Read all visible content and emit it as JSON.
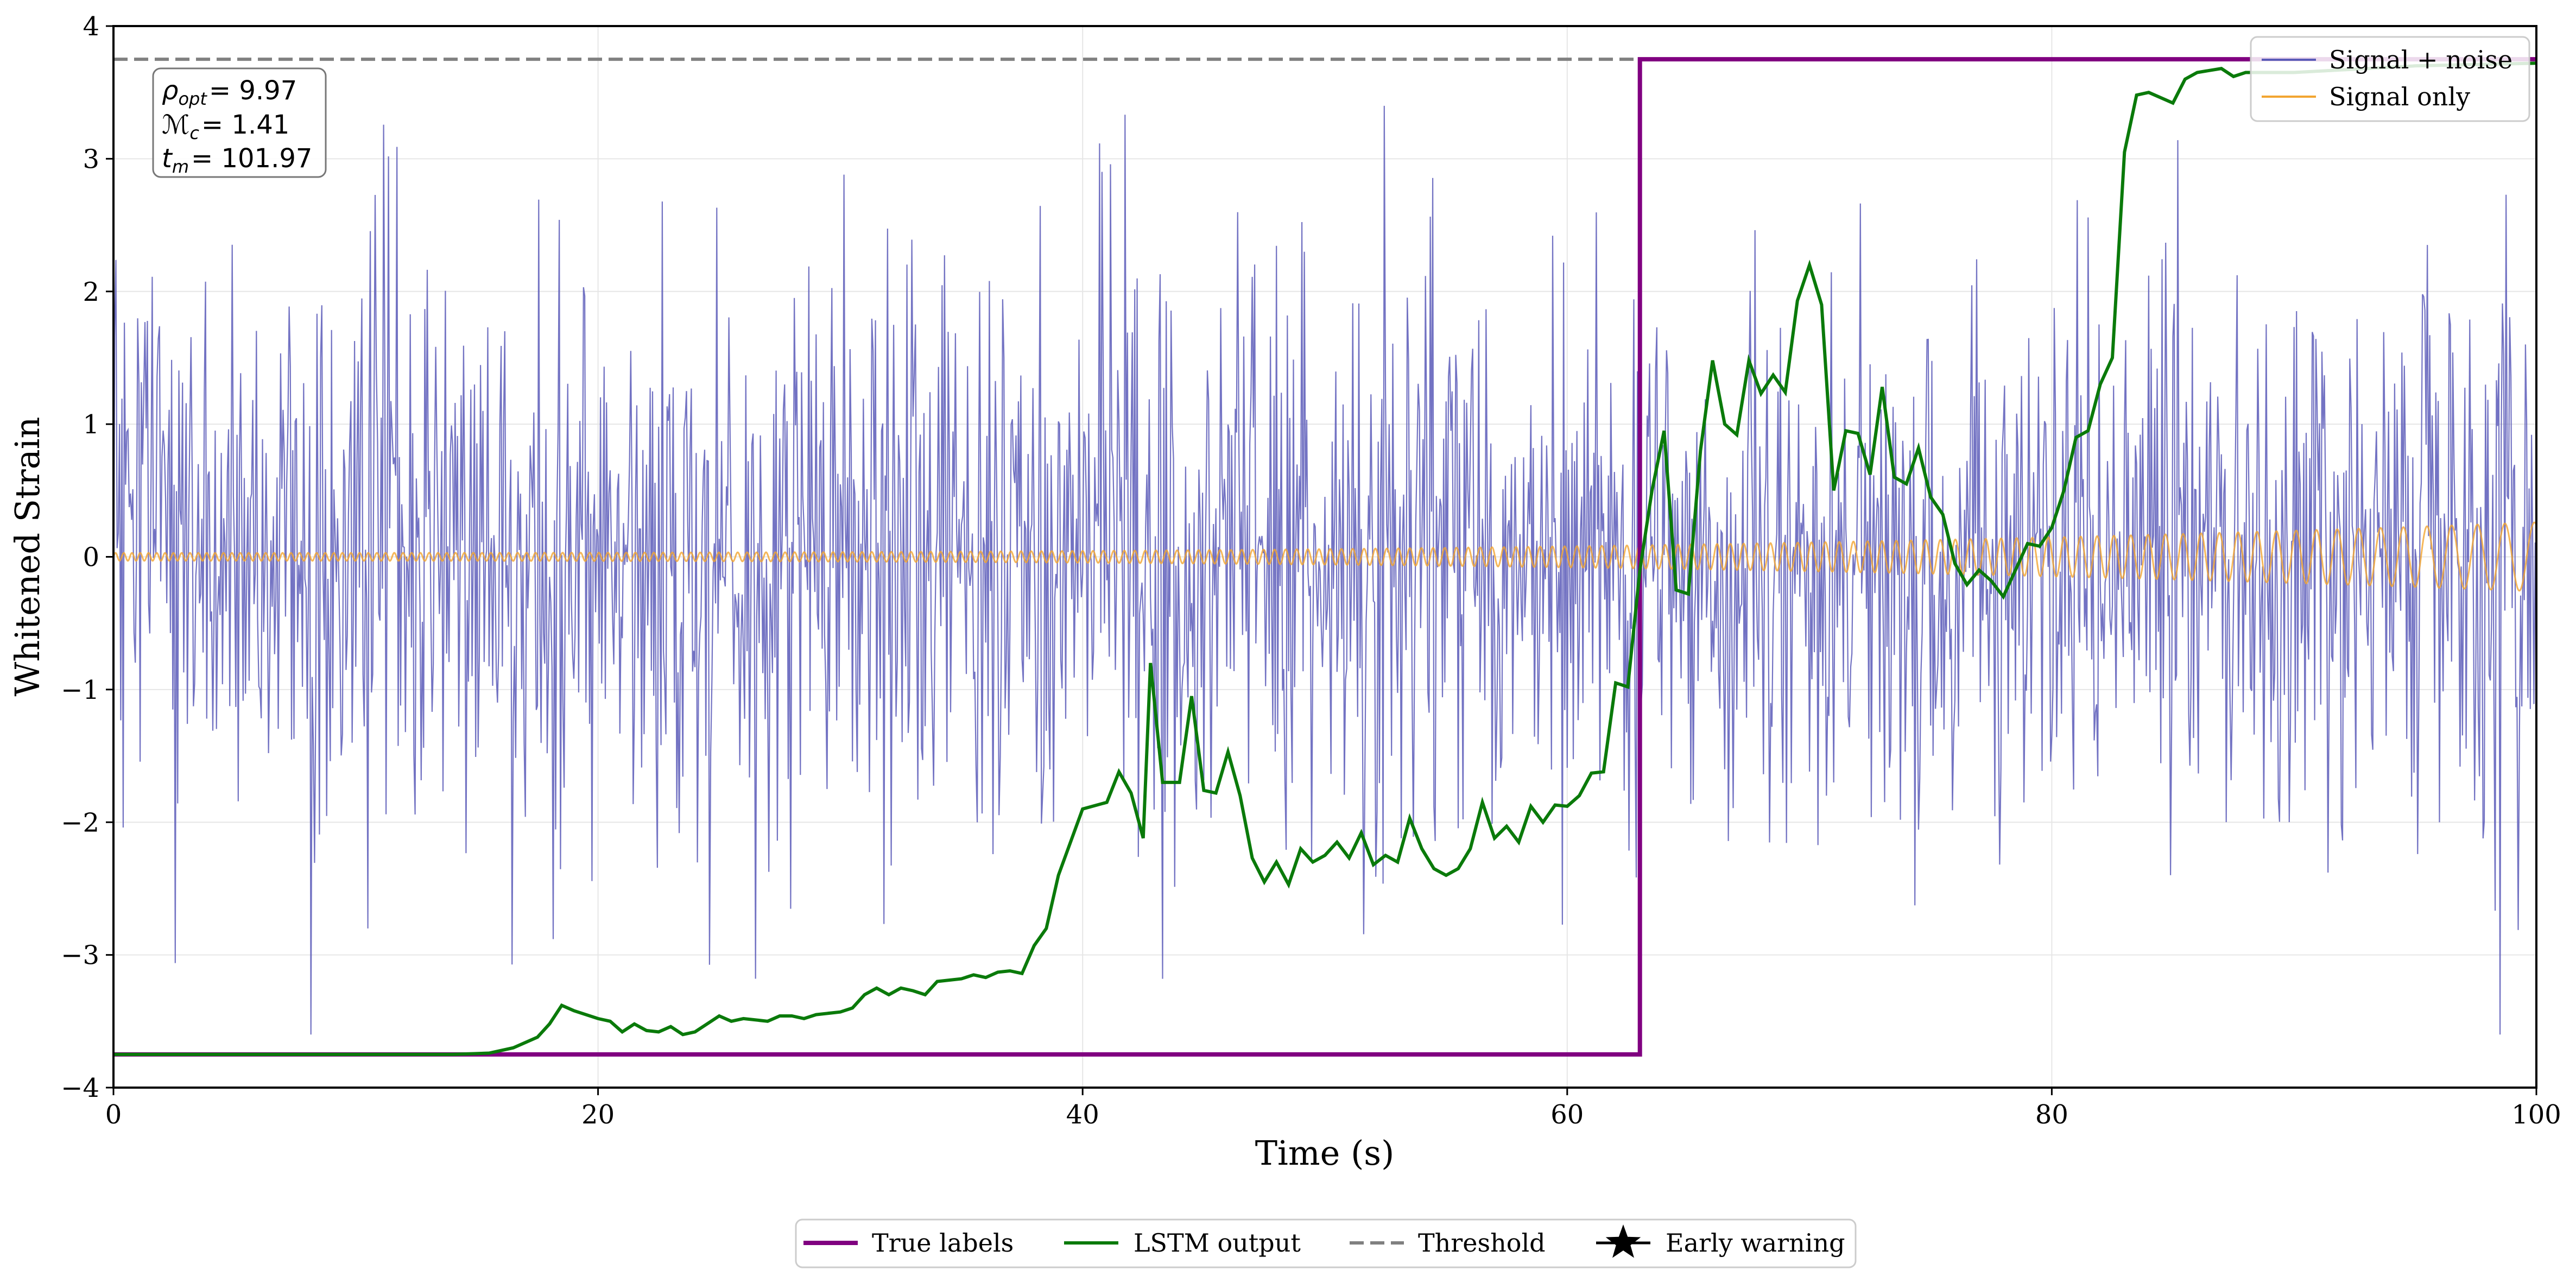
{
  "chart_data": {
    "type": "line",
    "title": "",
    "xlabel": "Time (s)",
    "ylabel": "Whitened Strain",
    "xlim": [
      0,
      100
    ],
    "ylim": [
      -4,
      4
    ],
    "xticks": [
      0,
      20,
      40,
      60,
      80,
      100
    ],
    "yticks": [
      -4,
      -3,
      -2,
      -1,
      0,
      1,
      2,
      3,
      4
    ],
    "grid": true,
    "annotation": {
      "rho_symbol": "ρ",
      "rho_sub": "opt",
      "rho_value": "= 9.97",
      "mc_symbol": "ℳ",
      "mc_sub": "c",
      "mc_value": "= 1.41",
      "tm_symbol": "t",
      "tm_sub": "m",
      "tm_value": "= 101.97"
    },
    "legend_upper": {
      "position": "top-right",
      "entries": [
        {
          "label": "Signal + noise",
          "color": "#5a5ab8"
        },
        {
          "label": "Signal only",
          "color": "#f2a531"
        }
      ]
    },
    "legend_lower": {
      "position": "bottom-center",
      "entries": [
        {
          "label": "True labels",
          "color": "#800080",
          "style": "solid"
        },
        {
          "label": "LSTM output",
          "color": "#0a7a0a",
          "style": "solid"
        },
        {
          "label": "Threshold",
          "color": "#808080",
          "style": "dashed"
        },
        {
          "label": "Early warning",
          "color": "#000000",
          "style": "star"
        }
      ]
    },
    "series": [
      {
        "name": "Signal + noise",
        "color": "#5a5ab8",
        "description": "white-noise-like strain, std ≈ 1.05",
        "noise_std": 1.05,
        "samples": 2000
      },
      {
        "name": "Signal only",
        "color": "#f2a531",
        "description": "chirp with amplitude rising from 0.03 to 0.26 and frequency falling toward t = 100 s"
      },
      {
        "name": "True labels",
        "color": "#800080",
        "step_time": 63,
        "low": -3.75,
        "high": 3.75
      },
      {
        "name": "Threshold",
        "color": "#808080",
        "y": 3.75
      },
      {
        "name": "LSTM output",
        "color": "#0a7a0a",
        "points": [
          [
            0,
            -3.75
          ],
          [
            14,
            -3.75
          ],
          [
            15.5,
            -3.74
          ],
          [
            16.5,
            -3.7
          ],
          [
            17.5,
            -3.62
          ],
          [
            18,
            -3.52
          ],
          [
            18.5,
            -3.38
          ],
          [
            19,
            -3.42
          ],
          [
            20,
            -3.48
          ],
          [
            20.5,
            -3.5
          ],
          [
            21,
            -3.58
          ],
          [
            21.5,
            -3.52
          ],
          [
            22,
            -3.57
          ],
          [
            22.5,
            -3.58
          ],
          [
            23,
            -3.54
          ],
          [
            23.5,
            -3.6
          ],
          [
            24,
            -3.58
          ],
          [
            24.5,
            -3.52
          ],
          [
            25,
            -3.46
          ],
          [
            25.5,
            -3.5
          ],
          [
            26,
            -3.48
          ],
          [
            27,
            -3.5
          ],
          [
            27.5,
            -3.46
          ],
          [
            28,
            -3.46
          ],
          [
            28.5,
            -3.48
          ],
          [
            29,
            -3.45
          ],
          [
            30,
            -3.43
          ],
          [
            30.5,
            -3.4
          ],
          [
            31,
            -3.3
          ],
          [
            31.5,
            -3.25
          ],
          [
            32,
            -3.3
          ],
          [
            32.5,
            -3.25
          ],
          [
            33,
            -3.27
          ],
          [
            33.5,
            -3.3
          ],
          [
            34,
            -3.2
          ],
          [
            35,
            -3.18
          ],
          [
            35.5,
            -3.15
          ],
          [
            36,
            -3.17
          ],
          [
            36.5,
            -3.13
          ],
          [
            37,
            -3.12
          ],
          [
            37.5,
            -3.14
          ],
          [
            38,
            -2.93
          ],
          [
            38.5,
            -2.8
          ],
          [
            39,
            -2.4
          ],
          [
            40,
            -1.9
          ],
          [
            41,
            -1.85
          ],
          [
            41.5,
            -1.62
          ],
          [
            42,
            -1.78
          ],
          [
            42.5,
            -2.12
          ],
          [
            42.8,
            -0.8
          ],
          [
            43.3,
            -1.7
          ],
          [
            44,
            -1.7
          ],
          [
            44.5,
            -1.05
          ],
          [
            45,
            -1.76
          ],
          [
            45.5,
            -1.78
          ],
          [
            46,
            -1.47
          ],
          [
            46.5,
            -1.8
          ],
          [
            47,
            -2.27
          ],
          [
            47.5,
            -2.45
          ],
          [
            48,
            -2.3
          ],
          [
            48.5,
            -2.47
          ],
          [
            49,
            -2.2
          ],
          [
            49.5,
            -2.3
          ],
          [
            50,
            -2.25
          ],
          [
            50.5,
            -2.15
          ],
          [
            51,
            -2.27
          ],
          [
            51.5,
            -2.08
          ],
          [
            52,
            -2.32
          ],
          [
            52.5,
            -2.25
          ],
          [
            53,
            -2.3
          ],
          [
            53.5,
            -1.97
          ],
          [
            54,
            -2.2
          ],
          [
            54.5,
            -2.35
          ],
          [
            55,
            -2.4
          ],
          [
            55.5,
            -2.35
          ],
          [
            56,
            -2.2
          ],
          [
            56.5,
            -1.85
          ],
          [
            57,
            -2.12
          ],
          [
            57.5,
            -2.03
          ],
          [
            58,
            -2.15
          ],
          [
            58.5,
            -1.88
          ],
          [
            59,
            -2.0
          ],
          [
            59.5,
            -1.87
          ],
          [
            60,
            -1.88
          ],
          [
            60.5,
            -1.8
          ],
          [
            61,
            -1.63
          ],
          [
            61.5,
            -1.62
          ],
          [
            62,
            -0.95
          ],
          [
            62.5,
            -0.98
          ],
          [
            63,
            -0.1
          ],
          [
            63.5,
            0.5
          ],
          [
            64,
            0.95
          ],
          [
            64.5,
            -0.25
          ],
          [
            65,
            -0.28
          ],
          [
            65.5,
            0.8
          ],
          [
            66,
            1.48
          ],
          [
            66.5,
            1.0
          ],
          [
            67,
            0.92
          ],
          [
            67.5,
            1.48
          ],
          [
            68,
            1.23
          ],
          [
            68.5,
            1.37
          ],
          [
            69,
            1.24
          ],
          [
            69.5,
            1.93
          ],
          [
            70,
            2.2
          ],
          [
            70.5,
            1.9
          ],
          [
            71,
            0.5
          ],
          [
            71.5,
            0.95
          ],
          [
            72,
            0.93
          ],
          [
            72.5,
            0.62
          ],
          [
            73,
            1.28
          ],
          [
            73.5,
            0.6
          ],
          [
            74,
            0.55
          ],
          [
            74.5,
            0.82
          ],
          [
            75,
            0.45
          ],
          [
            75.5,
            0.32
          ],
          [
            76,
            -0.05
          ],
          [
            76.5,
            -0.21
          ],
          [
            77,
            -0.1
          ],
          [
            77.5,
            -0.18
          ],
          [
            78,
            -0.3
          ],
          [
            78.5,
            -0.1
          ],
          [
            79,
            0.1
          ],
          [
            79.5,
            0.08
          ],
          [
            80,
            0.22
          ],
          [
            80.5,
            0.5
          ],
          [
            81,
            0.9
          ],
          [
            81.5,
            0.95
          ],
          [
            82,
            1.3
          ],
          [
            82.5,
            1.5
          ],
          [
            83,
            3.05
          ],
          [
            83.5,
            3.48
          ],
          [
            84,
            3.5
          ],
          [
            85,
            3.42
          ],
          [
            85.5,
            3.6
          ],
          [
            86,
            3.65
          ],
          [
            87,
            3.68
          ],
          [
            87.5,
            3.62
          ],
          [
            88,
            3.65
          ],
          [
            90,
            3.65
          ],
          [
            95,
            3.7
          ],
          [
            100,
            3.72
          ]
        ]
      }
    ]
  }
}
